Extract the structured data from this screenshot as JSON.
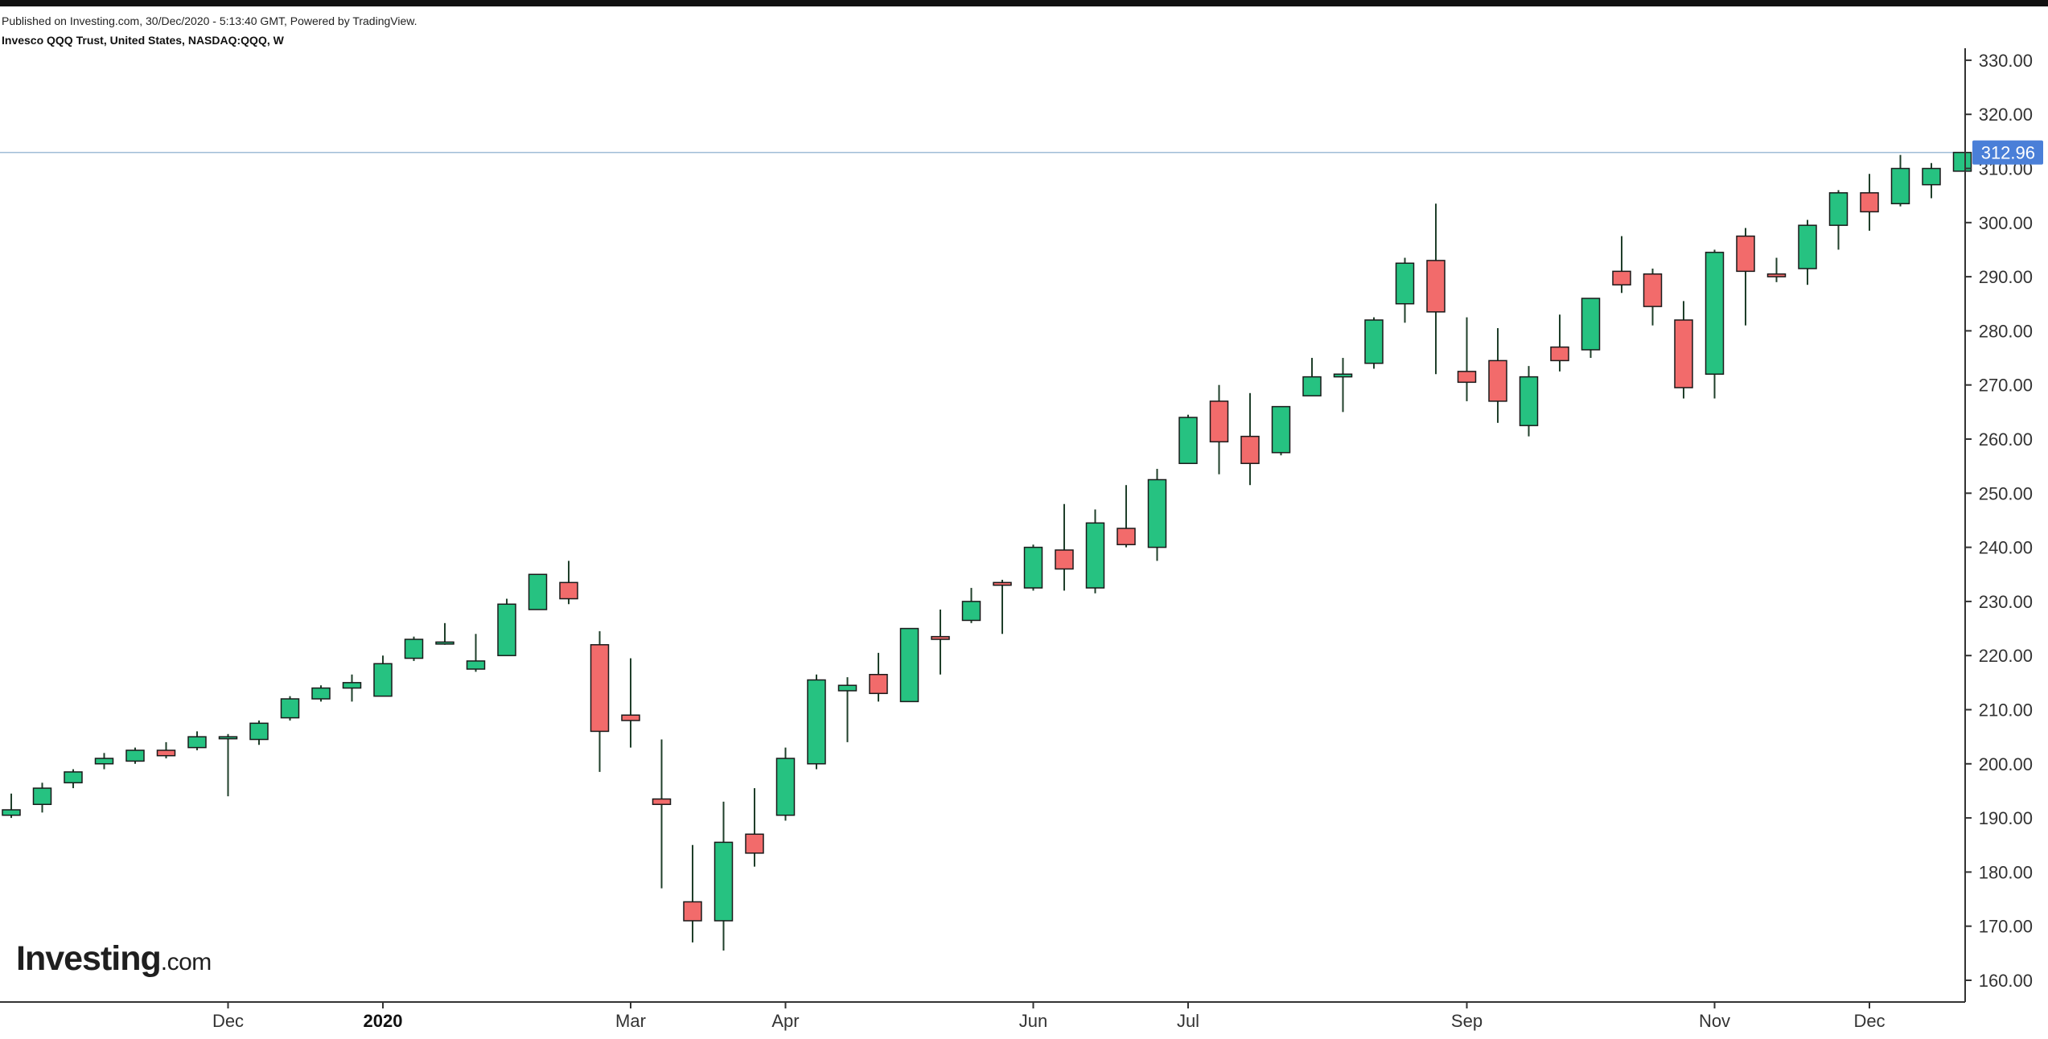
{
  "header": {
    "published": "Published on Investing.com, 30/Dec/2020 - 5:13:40 GMT, Powered by TradingView.",
    "subtitle": "Invesco QQQ Trust, United States, NASDAQ:QQQ, W"
  },
  "logo": {
    "brand": "Investing",
    "suffix": ".com"
  },
  "colors": {
    "up": "#26c281",
    "down": "#f26b6b",
    "wick": "#1f3f2a",
    "outline": "#1a1a1a",
    "price_line": "#9fbcd6",
    "price_badge": "#4a7fd8",
    "axis": "#333333"
  },
  "chart_data": {
    "type": "candlestick",
    "interval": "W",
    "title": "",
    "xlabel": "",
    "ylabel": "",
    "ylim": [
      156,
      333
    ],
    "grid": false,
    "y_ticks": [
      "160.00",
      "170.00",
      "180.00",
      "190.00",
      "200.00",
      "210.00",
      "220.00",
      "230.00",
      "240.00",
      "250.00",
      "260.00",
      "270.00",
      "280.00",
      "290.00",
      "300.00",
      "310.00",
      "320.00",
      "330.00"
    ],
    "x_tick_labels": [
      {
        "label": "Dec",
        "index": 7,
        "bold": false
      },
      {
        "label": "2020",
        "index": 12,
        "bold": true
      },
      {
        "label": "Mar",
        "index": 20,
        "bold": false
      },
      {
        "label": "Apr",
        "index": 25,
        "bold": false
      },
      {
        "label": "Jun",
        "index": 33,
        "bold": false
      },
      {
        "label": "Jul",
        "index": 38,
        "bold": false
      },
      {
        "label": "Sep",
        "index": 47,
        "bold": false
      },
      {
        "label": "Nov",
        "index": 55,
        "bold": false
      },
      {
        "label": "Dec",
        "index": 60,
        "bold": false
      }
    ],
    "last_price": 312.96,
    "last_price_label": "312.96",
    "candles": [
      {
        "o": 190.5,
        "h": 194.5,
        "l": 190.0,
        "c": 191.5
      },
      {
        "o": 192.5,
        "h": 196.5,
        "l": 191.0,
        "c": 195.5
      },
      {
        "o": 196.5,
        "h": 199.0,
        "l": 195.5,
        "c": 198.5
      },
      {
        "o": 200.0,
        "h": 202.0,
        "l": 199.0,
        "c": 201.0
      },
      {
        "o": 200.5,
        "h": 203.0,
        "l": 200.0,
        "c": 202.5
      },
      {
        "o": 202.5,
        "h": 204.0,
        "l": 201.0,
        "c": 201.5
      },
      {
        "o": 203.0,
        "h": 206.0,
        "l": 202.5,
        "c": 205.0
      },
      {
        "o": 205.0,
        "h": 205.5,
        "l": 194.0,
        "c": 205.0
      },
      {
        "o": 204.5,
        "h": 208.0,
        "l": 203.5,
        "c": 207.5
      },
      {
        "o": 208.5,
        "h": 212.5,
        "l": 208.0,
        "c": 212.0
      },
      {
        "o": 212.0,
        "h": 214.5,
        "l": 211.5,
        "c": 214.0
      },
      {
        "o": 214.0,
        "h": 216.5,
        "l": 211.5,
        "c": 215.0
      },
      {
        "o": 212.5,
        "h": 220.0,
        "l": 212.5,
        "c": 218.5
      },
      {
        "o": 219.5,
        "h": 223.5,
        "l": 219.0,
        "c": 223.0
      },
      {
        "o": 222.5,
        "h": 226.0,
        "l": 222.0,
        "c": 222.5
      },
      {
        "o": 217.5,
        "h": 224.0,
        "l": 217.0,
        "c": 219.0
      },
      {
        "o": 220.0,
        "h": 230.5,
        "l": 220.0,
        "c": 229.5
      },
      {
        "o": 228.5,
        "h": 235.0,
        "l": 228.5,
        "c": 235.0
      },
      {
        "o": 233.5,
        "h": 237.5,
        "l": 229.5,
        "c": 230.5
      },
      {
        "o": 222.0,
        "h": 224.5,
        "l": 198.5,
        "c": 206.0
      },
      {
        "o": 209.0,
        "h": 219.5,
        "l": 203.0,
        "c": 208.0
      },
      {
        "o": 193.5,
        "h": 204.5,
        "l": 177.0,
        "c": 192.5
      },
      {
        "o": 174.5,
        "h": 185.0,
        "l": 167.0,
        "c": 171.0
      },
      {
        "o": 171.0,
        "h": 193.0,
        "l": 165.5,
        "c": 185.5
      },
      {
        "o": 187.0,
        "h": 195.5,
        "l": 181.0,
        "c": 183.5
      },
      {
        "o": 190.5,
        "h": 203.0,
        "l": 189.5,
        "c": 201.0
      },
      {
        "o": 200.0,
        "h": 216.5,
        "l": 199.0,
        "c": 215.5
      },
      {
        "o": 213.5,
        "h": 216.0,
        "l": 204.0,
        "c": 214.5
      },
      {
        "o": 216.5,
        "h": 220.5,
        "l": 211.5,
        "c": 213.0
      },
      {
        "o": 211.5,
        "h": 225.0,
        "l": 211.5,
        "c": 225.0
      },
      {
        "o": 223.5,
        "h": 228.5,
        "l": 216.5,
        "c": 223.0
      },
      {
        "o": 226.5,
        "h": 232.5,
        "l": 226.0,
        "c": 230.0
      },
      {
        "o": 233.5,
        "h": 234.0,
        "l": 224.0,
        "c": 233.0
      },
      {
        "o": 232.5,
        "h": 240.5,
        "l": 232.0,
        "c": 240.0
      },
      {
        "o": 239.5,
        "h": 248.0,
        "l": 232.0,
        "c": 236.0
      },
      {
        "o": 232.5,
        "h": 247.0,
        "l": 231.5,
        "c": 244.5
      },
      {
        "o": 243.5,
        "h": 251.5,
        "l": 240.0,
        "c": 240.5
      },
      {
        "o": 240.0,
        "h": 254.5,
        "l": 237.5,
        "c": 252.5
      },
      {
        "o": 255.5,
        "h": 264.5,
        "l": 255.5,
        "c": 264.0
      },
      {
        "o": 267.0,
        "h": 270.0,
        "l": 253.5,
        "c": 259.5
      },
      {
        "o": 260.5,
        "h": 268.5,
        "l": 251.5,
        "c": 255.5
      },
      {
        "o": 257.5,
        "h": 266.0,
        "l": 257.0,
        "c": 266.0
      },
      {
        "o": 268.0,
        "h": 275.0,
        "l": 268.0,
        "c": 271.5
      },
      {
        "o": 271.5,
        "h": 275.0,
        "l": 265.0,
        "c": 272.0
      },
      {
        "o": 274.0,
        "h": 282.5,
        "l": 273.0,
        "c": 282.0
      },
      {
        "o": 285.0,
        "h": 293.5,
        "l": 281.5,
        "c": 292.5
      },
      {
        "o": 293.0,
        "h": 303.5,
        "l": 272.0,
        "c": 283.5
      },
      {
        "o": 272.5,
        "h": 282.5,
        "l": 267.0,
        "c": 270.5
      },
      {
        "o": 274.5,
        "h": 280.5,
        "l": 263.0,
        "c": 267.0
      },
      {
        "o": 262.5,
        "h": 273.5,
        "l": 260.5,
        "c": 271.5
      },
      {
        "o": 277.0,
        "h": 283.0,
        "l": 272.5,
        "c": 274.5
      },
      {
        "o": 276.5,
        "h": 286.0,
        "l": 275.0,
        "c": 286.0
      },
      {
        "o": 291.0,
        "h": 297.5,
        "l": 287.0,
        "c": 288.5
      },
      {
        "o": 290.5,
        "h": 291.5,
        "l": 281.0,
        "c": 284.5
      },
      {
        "o": 282.0,
        "h": 285.5,
        "l": 267.5,
        "c": 269.5
      },
      {
        "o": 272.0,
        "h": 295.0,
        "l": 267.5,
        "c": 294.5
      },
      {
        "o": 297.5,
        "h": 299.0,
        "l": 281.0,
        "c": 291.0
      },
      {
        "o": 290.5,
        "h": 293.5,
        "l": 289.0,
        "c": 290.0
      },
      {
        "o": 291.5,
        "h": 300.5,
        "l": 288.5,
        "c": 299.5
      },
      {
        "o": 299.5,
        "h": 306.0,
        "l": 295.0,
        "c": 305.5
      },
      {
        "o": 305.5,
        "h": 309.0,
        "l": 298.5,
        "c": 302.0
      },
      {
        "o": 303.5,
        "h": 312.5,
        "l": 303.0,
        "c": 310.0
      },
      {
        "o": 307.0,
        "h": 311.0,
        "l": 304.5,
        "c": 310.0
      },
      {
        "o": 309.5,
        "h": 313.0,
        "l": 309.5,
        "c": 312.96
      }
    ]
  }
}
